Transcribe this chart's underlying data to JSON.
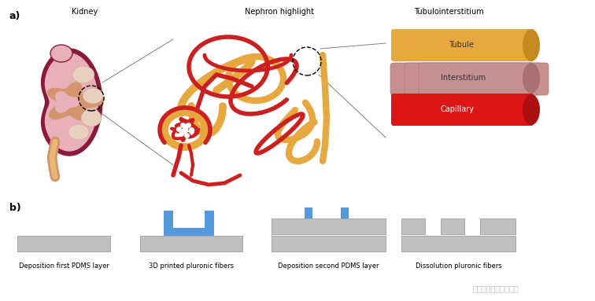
{
  "bg_color": "#ffffff",
  "label_a": "a)",
  "label_b": "b)",
  "title_kidney": "Kidney",
  "title_nephron": "Nephron highlight",
  "title_tubulo": "Tubulointerstitium",
  "tubule_label": "Tubule",
  "interstitium_label": "Interstitium",
  "capillary_label": "Capillary",
  "step1_label": "Deposition first PDMS layer",
  "step2_label": "3D printed pluronic fibers",
  "step3_label": "Deposition second PDMS layer",
  "step4_label": "Dissolution pluronic fibers",
  "color_kidney_cortex": "#e8b0b8",
  "color_kidney_maroon": "#8b1a3a",
  "color_kidney_medulla": "#d4956e",
  "color_kidney_calyx": "#e8d0c0",
  "color_tubule_orange": "#e8a840",
  "color_tubule_dark": "#c88820",
  "color_blood_red": "#cc2020",
  "color_interstitium": "#c49090",
  "color_interstitium_dark": "#a87070",
  "color_capillary": "#dd1515",
  "color_capillary_dark": "#aa1010",
  "color_pdms": "#c0c0c0",
  "color_pdms_edge": "#909090",
  "color_blue_fiber": "#5599dd",
  "color_watermark": "#888888",
  "watermark_text": "江苏省人民医院肾内科",
  "font_size_title": 7,
  "font_size_step": 6,
  "font_size_label": 9
}
